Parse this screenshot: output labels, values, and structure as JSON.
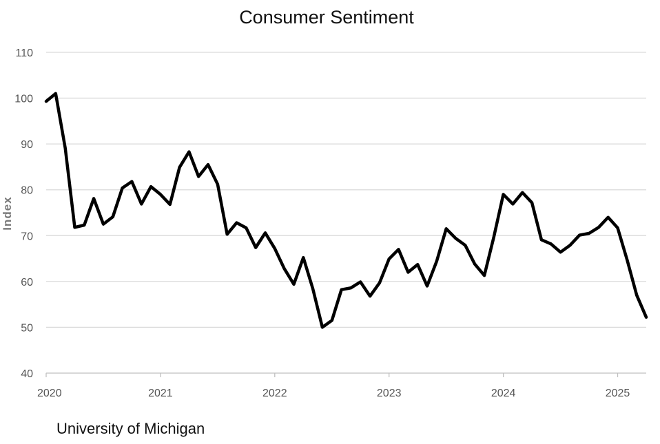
{
  "chart_data": {
    "type": "line",
    "title": "Consumer Sentiment",
    "xlabel": "",
    "ylabel": "Index",
    "source": "University of Michigan",
    "ylim": [
      40,
      110
    ],
    "yticks": [
      40,
      50,
      60,
      70,
      80,
      90,
      100,
      110
    ],
    "xticks": [
      "2020",
      "2021",
      "2022",
      "2023",
      "2024",
      "2025"
    ],
    "x_range": [
      "2020-01",
      "2025-04"
    ],
    "grid": true,
    "legend": "none",
    "colors": {
      "line": "#000000",
      "grid": "#d9d9d9",
      "axis": "#bfbfbf"
    },
    "series": [
      {
        "x": [
          "2020-01",
          "2020-02",
          "2020-03",
          "2020-04",
          "2020-05",
          "2020-06",
          "2020-07",
          "2020-08",
          "2020-09",
          "2020-10",
          "2020-11",
          "2020-12",
          "2021-01",
          "2021-02",
          "2021-03",
          "2021-04",
          "2021-05",
          "2021-06",
          "2021-07",
          "2021-08",
          "2021-09",
          "2021-10",
          "2021-11",
          "2021-12",
          "2022-01",
          "2022-02",
          "2022-03",
          "2022-04",
          "2022-05",
          "2022-06",
          "2022-07",
          "2022-08",
          "2022-09",
          "2022-10",
          "2022-11",
          "2022-12",
          "2023-01",
          "2023-02",
          "2023-03",
          "2023-04",
          "2023-05",
          "2023-06",
          "2023-07",
          "2023-08",
          "2023-09",
          "2023-10",
          "2023-11",
          "2023-12",
          "2024-01",
          "2024-02",
          "2024-03",
          "2024-04",
          "2024-05",
          "2024-06",
          "2024-07",
          "2024-08",
          "2024-09",
          "2024-10",
          "2024-11",
          "2024-12",
          "2025-01",
          "2025-02",
          "2025-03",
          "2025-04"
        ],
        "values": [
          99.3,
          101.0,
          89.1,
          71.8,
          72.3,
          78.1,
          72.5,
          74.1,
          80.4,
          81.8,
          76.9,
          80.7,
          79.0,
          76.8,
          84.9,
          88.3,
          82.9,
          85.5,
          81.2,
          70.3,
          72.8,
          71.7,
          67.4,
          70.6,
          67.2,
          62.8,
          59.4,
          65.2,
          58.4,
          50.0,
          51.5,
          58.2,
          58.6,
          59.9,
          56.8,
          59.7,
          64.9,
          67.0,
          62.0,
          63.7,
          59.0,
          64.4,
          71.5,
          69.4,
          67.9,
          63.8,
          61.3,
          69.7,
          79.0,
          76.9,
          79.4,
          77.2,
          69.1,
          68.2,
          66.4,
          67.9,
          70.1,
          70.5,
          71.8,
          74.0,
          71.7,
          64.7,
          57.0,
          52.2
        ]
      }
    ]
  }
}
